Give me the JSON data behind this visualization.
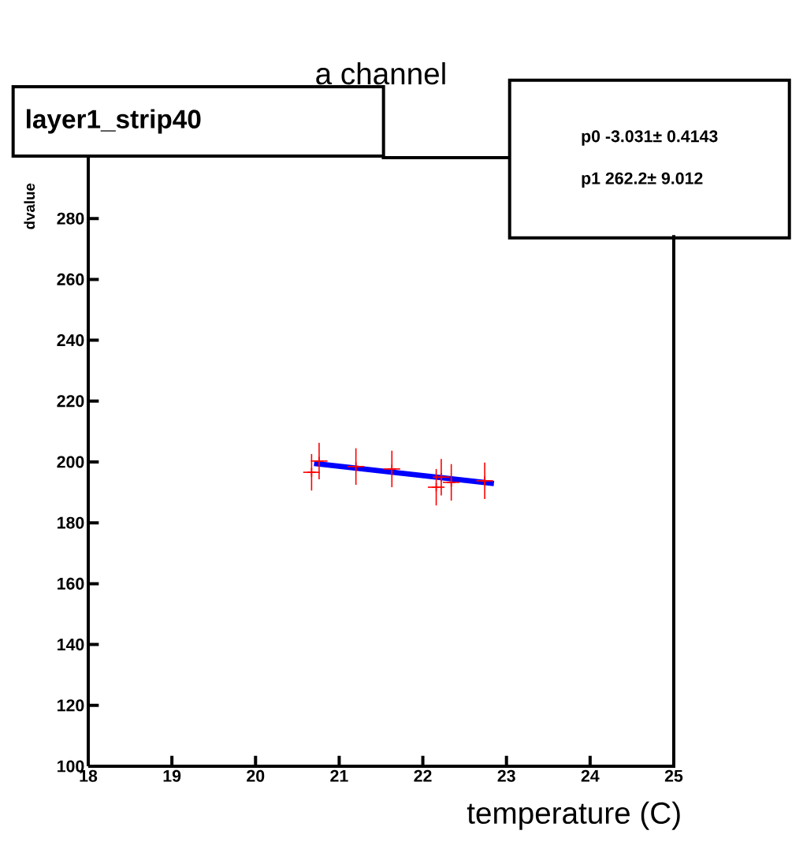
{
  "chart_data": {
    "type": "scatter",
    "title": "a channel",
    "xlabel": "temperature (C)",
    "ylabel": "dvalue",
    "annotations": [
      "layer1_strip40",
      "p0 -3.031± 0.4143",
      "p1    262.2± 9.012"
    ],
    "xlim": [
      18,
      25
    ],
    "ylim": [
      100,
      300
    ],
    "xticks": [
      18,
      19,
      20,
      21,
      22,
      23,
      24,
      25
    ],
    "yticks": [
      100,
      120,
      140,
      160,
      180,
      200,
      220,
      240,
      260,
      280
    ],
    "grid": false,
    "series": [
      {
        "type": "line",
        "color": "#0000ff",
        "x": [
          20.7,
          22.85
        ],
        "values": [
          199.5,
          192.9
        ]
      },
      {
        "color": "#ff0000",
        "marker": "cross",
        "x": [
          20.67,
          20.76,
          21.2,
          21.63,
          22.16,
          22.22,
          22.34,
          22.74
        ],
        "values": [
          196.6,
          200.3,
          198.5,
          197.7,
          191.7,
          195.0,
          193.3,
          193.8
        ],
        "errors": [
          6,
          6,
          6,
          6,
          6,
          6,
          6,
          6
        ],
        "xerrors": [
          0.1,
          0.1,
          0.1,
          0.1,
          0.1,
          0.1,
          0.1,
          0.1
        ]
      }
    ]
  }
}
